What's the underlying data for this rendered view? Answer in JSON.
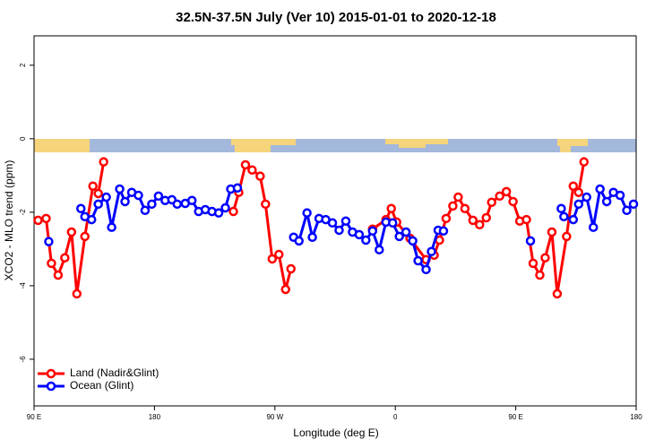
{
  "chart_data": {
    "type": "line",
    "title": "32.5N-37.5N July (Ver 10)   2015-01-01 to 2020-12-18",
    "xlabel": "Longitude (deg E)",
    "ylabel": "XCO2 - MLO trend (ppm)",
    "xlim": [
      90,
      540
    ],
    "ylim": [
      -7.27,
      2.8
    ],
    "xticks": [
      {
        "value": 90,
        "label": "90 E"
      },
      180,
      {
        "value": 270,
        "label": "90 W"
      },
      {
        "value": 360,
        "label": "0"
      },
      {
        "value": 450,
        "label": "90 E"
      },
      {
        "value": 540,
        "label": "180"
      }
    ],
    "yticks": [
      2,
      0,
      -2,
      -4,
      -6
    ],
    "legend": "bottom-left",
    "series": [
      {
        "name": "Land (Nadir&Glint)",
        "color": "#ff0000",
        "x": [
          93,
          99,
          103,
          108,
          113,
          118,
          122,
          128,
          134,
          138,
          142,
          null,
          239,
          243,
          248,
          253,
          259,
          263,
          268,
          273,
          278,
          282,
          null,
          343,
          353,
          357,
          361,
          371,
          383,
          389,
          393,
          398,
          403,
          407,
          412,
          418,
          423,
          428,
          432,
          438,
          443,
          448,
          453,
          458,
          463,
          468,
          472,
          477,
          481,
          488,
          493,
          497,
          501
        ],
        "values": [
          -2.22,
          -2.17,
          -3.39,
          -3.71,
          -3.24,
          -2.54,
          -4.22,
          -2.66,
          -1.29,
          -1.49,
          -0.63,
          null,
          -1.98,
          -1.46,
          -0.71,
          -0.85,
          -1.02,
          -1.78,
          -3.27,
          -3.15,
          -4.1,
          -3.54,
          null,
          -2.46,
          -2.2,
          -1.9,
          -2.27,
          -2.71,
          -3.29,
          -3.17,
          -2.76,
          -2.17,
          -1.83,
          -1.59,
          -1.9,
          -2.22,
          -2.34,
          -2.15,
          -1.73,
          -1.56,
          -1.44,
          -1.71,
          -2.24,
          -2.2,
          -3.39,
          -3.71,
          -3.24,
          -2.54,
          -4.22,
          -2.66,
          -1.29,
          -1.46,
          -0.63
        ]
      },
      {
        "name": "Ocean (Glint)",
        "color": "#0000ff",
        "x": [
          101,
          null,
          125,
          128,
          133,
          138,
          144,
          148,
          154,
          158,
          163,
          168,
          173,
          178,
          183,
          188,
          193,
          197,
          203,
          208,
          213,
          218,
          223,
          228,
          233,
          237,
          242,
          null,
          284,
          288,
          294,
          298,
          303,
          308,
          313,
          318,
          323,
          328,
          333,
          338,
          343,
          348,
          353,
          358,
          363,
          368,
          373,
          377,
          383,
          387,
          392,
          396,
          null,
          461,
          null,
          484,
          486,
          493,
          497,
          503,
          508,
          513,
          518,
          523,
          528,
          533,
          538
        ],
        "values": [
          -2.8,
          null,
          -1.9,
          -2.12,
          -2.2,
          -1.78,
          -1.59,
          -2.41,
          -1.37,
          -1.71,
          -1.46,
          -1.54,
          -1.95,
          -1.78,
          -1.56,
          -1.68,
          -1.66,
          -1.78,
          -1.76,
          -1.68,
          -1.98,
          -1.93,
          -1.98,
          -2.02,
          -1.88,
          -1.37,
          -1.34,
          null,
          -2.68,
          -2.78,
          -2.02,
          -2.68,
          -2.17,
          -2.2,
          -2.29,
          -2.49,
          -2.24,
          -2.54,
          -2.61,
          -2.76,
          -2.51,
          -3.02,
          -2.27,
          -2.29,
          -2.66,
          -2.54,
          -2.78,
          -3.32,
          -3.56,
          -3.07,
          -2.49,
          -2.51,
          null,
          -2.78,
          null,
          -1.9,
          -2.12,
          -2.2,
          -1.78,
          -1.59,
          -2.41,
          -1.37,
          -1.71,
          -1.46,
          -1.54,
          -1.95,
          -1.78
        ]
      }
    ]
  }
}
